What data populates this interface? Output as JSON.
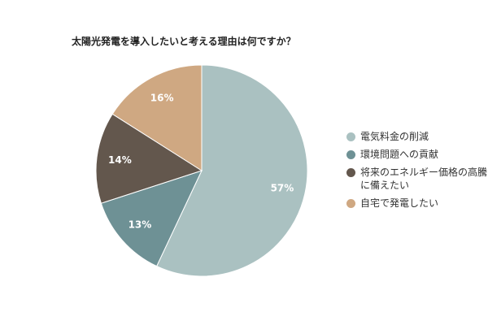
{
  "chart_data": {
    "type": "pie",
    "title": "太陽光発電を導入したいと考える理由は何ですか？",
    "series": [
      {
        "name": "電気料金の削減",
        "color": "#aac1c1",
        "value": 57,
        "value_label": "57%"
      },
      {
        "name": "環境問題への貢献",
        "color": "#6e9195",
        "value": 13,
        "value_label": "13%"
      },
      {
        "name": "将来のエネルギー価格の高騰に備えたい",
        "color": "#63574d",
        "value": 14,
        "value_label": "14%"
      },
      {
        "name": "自宅で発電したい",
        "color": "#cfa882",
        "value": 16,
        "value_label": "16%"
      }
    ],
    "legend": "right"
  }
}
